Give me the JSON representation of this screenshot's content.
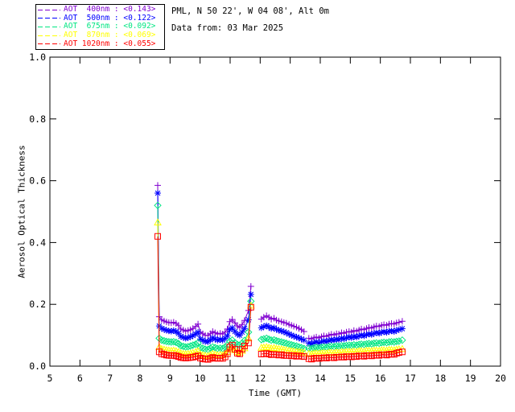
{
  "header": {
    "line1": "PML, N 50 22', W 04 08', Alt 0m",
    "line2": "Data from: 03 Mar 2025"
  },
  "legend": {
    "items": [
      {
        "label": "AOT  400nm : <0.143>",
        "color": "#8000d0"
      },
      {
        "label": "AOT  500nm : <0.122>",
        "color": "#0000ff"
      },
      {
        "label": "AOT  675nm : <0.092>",
        "color": "#00e682"
      },
      {
        "label": "AOT  870nm : <0.069>",
        "color": "#ffff00"
      },
      {
        "label": "AOT 1020nm : <0.055>",
        "color": "#ff0000"
      }
    ]
  },
  "chart_data": {
    "type": "line",
    "title": "",
    "xlabel": "Time (GMT)",
    "ylabel": "Aerosol Optical Thickness",
    "xlim": [
      5,
      20
    ],
    "ylim": [
      0.0,
      1.0
    ],
    "grid": false,
    "legend_position": "top-left-outside",
    "xticks": [
      5,
      6,
      7,
      8,
      9,
      10,
      11,
      12,
      13,
      14,
      15,
      16,
      17,
      18,
      19,
      20
    ],
    "xtick_labels": [
      "5",
      "6",
      "7",
      "8",
      "9",
      "10",
      "11",
      "12",
      "13",
      "14",
      "15",
      "16",
      "17",
      "18",
      "19",
      "20"
    ],
    "yticks": [
      0.0,
      0.2,
      0.4,
      0.6,
      0.8,
      1.0
    ],
    "ytick_labels": [
      "0.0",
      "0.2",
      "0.4",
      "0.6",
      "0.8",
      "1.0"
    ],
    "axis_color": "#000000",
    "segment_times": [
      [
        8.59,
        8.64,
        8.72,
        8.8,
        8.88,
        8.96,
        9.04,
        9.12,
        9.2,
        9.28,
        9.36,
        9.44,
        9.52,
        9.6,
        9.68,
        9.76,
        9.85,
        9.93,
        10.01,
        10.09,
        10.17,
        10.26,
        10.34,
        10.42,
        10.5,
        10.58,
        10.67,
        10.75,
        10.83,
        10.91,
        10.99,
        11.07,
        11.16,
        11.24,
        11.32,
        11.4,
        11.48,
        11.61,
        11.69
      ],
      [
        12.04,
        12.12,
        12.21,
        12.29,
        12.37,
        12.46,
        12.54,
        12.62,
        12.71,
        12.79,
        12.87,
        12.96,
        13.04,
        13.12,
        13.21,
        13.29,
        13.37,
        13.46
      ],
      [
        13.62,
        13.71,
        13.79,
        13.87,
        13.96,
        14.04,
        14.12,
        14.21,
        14.29,
        14.37,
        14.46,
        14.54,
        14.62,
        14.71,
        14.79,
        14.87,
        14.96,
        15.04,
        15.12,
        15.21,
        15.29,
        15.37,
        15.46,
        15.54,
        15.62,
        15.71,
        15.79,
        15.87,
        15.96,
        16.04,
        16.12,
        16.21,
        16.29,
        16.37,
        16.46,
        16.54,
        16.62,
        16.73
      ]
    ],
    "series": [
      {
        "name": "AOT 400nm",
        "mean": "<0.143>",
        "color": "#8000d0",
        "marker": "plus",
        "segment_values": [
          [
            0.585,
            0.16,
            0.15,
            0.146,
            0.143,
            0.141,
            0.14,
            0.142,
            0.138,
            0.132,
            0.12,
            0.117,
            0.113,
            0.115,
            0.118,
            0.122,
            0.128,
            0.136,
            0.11,
            0.105,
            0.1,
            0.099,
            0.105,
            0.112,
            0.108,
            0.104,
            0.106,
            0.104,
            0.11,
            0.12,
            0.144,
            0.151,
            0.14,
            0.13,
            0.125,
            0.135,
            0.148,
            0.18,
            0.258
          ],
          [
            0.152,
            0.158,
            0.163,
            0.158,
            0.152,
            0.155,
            0.149,
            0.146,
            0.144,
            0.141,
            0.139,
            0.135,
            0.132,
            0.129,
            0.126,
            0.122,
            0.118,
            0.112
          ],
          [
            0.09,
            0.088,
            0.092,
            0.094,
            0.091,
            0.095,
            0.098,
            0.096,
            0.1,
            0.103,
            0.101,
            0.105,
            0.104,
            0.108,
            0.106,
            0.11,
            0.112,
            0.11,
            0.115,
            0.113,
            0.117,
            0.12,
            0.118,
            0.122,
            0.125,
            0.123,
            0.127,
            0.13,
            0.128,
            0.132,
            0.134,
            0.132,
            0.136,
            0.138,
            0.136,
            0.14,
            0.142,
            0.145
          ]
        ]
      },
      {
        "name": "AOT 500nm",
        "mean": "<0.122>",
        "color": "#0000ff",
        "marker": "asterisk",
        "segment_values": [
          [
            0.56,
            0.13,
            0.122,
            0.119,
            0.116,
            0.114,
            0.113,
            0.115,
            0.112,
            0.106,
            0.096,
            0.093,
            0.09,
            0.092,
            0.095,
            0.099,
            0.104,
            0.11,
            0.088,
            0.084,
            0.08,
            0.079,
            0.085,
            0.092,
            0.088,
            0.084,
            0.086,
            0.084,
            0.09,
            0.098,
            0.118,
            0.124,
            0.112,
            0.104,
            0.1,
            0.11,
            0.122,
            0.15,
            0.232
          ],
          [
            0.124,
            0.128,
            0.131,
            0.127,
            0.122,
            0.124,
            0.119,
            0.116,
            0.114,
            0.111,
            0.108,
            0.104,
            0.1,
            0.097,
            0.094,
            0.091,
            0.088,
            0.084
          ],
          [
            0.074,
            0.072,
            0.076,
            0.078,
            0.075,
            0.079,
            0.081,
            0.079,
            0.083,
            0.085,
            0.084,
            0.087,
            0.086,
            0.09,
            0.088,
            0.092,
            0.094,
            0.092,
            0.096,
            0.094,
            0.098,
            0.1,
            0.098,
            0.102,
            0.104,
            0.102,
            0.106,
            0.108,
            0.106,
            0.11,
            0.111,
            0.109,
            0.113,
            0.114,
            0.112,
            0.116,
            0.118,
            0.121
          ]
        ]
      },
      {
        "name": "AOT 675nm",
        "mean": "<0.092>",
        "color": "#00e682",
        "marker": "diamond",
        "segment_values": [
          [
            0.52,
            0.09,
            0.084,
            0.082,
            0.08,
            0.079,
            0.078,
            0.079,
            0.077,
            0.073,
            0.066,
            0.064,
            0.062,
            0.063,
            0.065,
            0.068,
            0.071,
            0.075,
            0.06,
            0.058,
            0.055,
            0.054,
            0.058,
            0.062,
            0.06,
            0.057,
            0.058,
            0.057,
            0.062,
            0.068,
            0.08,
            0.084,
            0.076,
            0.07,
            0.068,
            0.075,
            0.083,
            0.11,
            0.21
          ],
          [
            0.086,
            0.088,
            0.09,
            0.087,
            0.084,
            0.085,
            0.082,
            0.08,
            0.078,
            0.076,
            0.074,
            0.071,
            0.069,
            0.067,
            0.065,
            0.062,
            0.06,
            0.057
          ],
          [
            0.058,
            0.057,
            0.059,
            0.06,
            0.059,
            0.061,
            0.062,
            0.061,
            0.063,
            0.064,
            0.063,
            0.065,
            0.064,
            0.066,
            0.065,
            0.067,
            0.068,
            0.067,
            0.069,
            0.068,
            0.07,
            0.071,
            0.07,
            0.072,
            0.073,
            0.072,
            0.074,
            0.075,
            0.074,
            0.076,
            0.077,
            0.076,
            0.078,
            0.079,
            0.078,
            0.08,
            0.081,
            0.084
          ]
        ]
      },
      {
        "name": "AOT 870nm",
        "mean": "<0.069>",
        "color": "#ffff00",
        "marker": "triangle",
        "segment_values": [
          [
            0.465,
            0.062,
            0.056,
            0.054,
            0.052,
            0.051,
            0.05,
            0.051,
            0.049,
            0.046,
            0.042,
            0.04,
            0.039,
            0.04,
            0.041,
            0.043,
            0.046,
            0.049,
            0.038,
            0.036,
            0.034,
            0.033,
            0.036,
            0.04,
            0.038,
            0.036,
            0.037,
            0.036,
            0.04,
            0.046,
            0.056,
            0.06,
            0.052,
            0.046,
            0.044,
            0.05,
            0.058,
            0.09,
            0.196
          ],
          [
            0.06,
            0.061,
            0.062,
            0.06,
            0.058,
            0.059,
            0.057,
            0.056,
            0.055,
            0.053,
            0.052,
            0.05,
            0.049,
            0.048,
            0.047,
            0.046,
            0.045,
            0.044
          ],
          [
            0.04,
            0.039,
            0.041,
            0.042,
            0.041,
            0.042,
            0.043,
            0.042,
            0.044,
            0.044,
            0.043,
            0.045,
            0.044,
            0.046,
            0.045,
            0.047,
            0.047,
            0.046,
            0.048,
            0.047,
            0.049,
            0.049,
            0.048,
            0.05,
            0.05,
            0.049,
            0.051,
            0.051,
            0.05,
            0.052,
            0.052,
            0.051,
            0.053,
            0.053,
            0.052,
            0.054,
            0.055,
            0.056
          ]
        ]
      },
      {
        "name": "AOT 1020nm",
        "mean": "<0.055>",
        "color": "#ff0000",
        "marker": "square",
        "segment_values": [
          [
            0.42,
            0.046,
            0.04,
            0.038,
            0.036,
            0.035,
            0.034,
            0.035,
            0.033,
            0.031,
            0.028,
            0.027,
            0.026,
            0.027,
            0.028,
            0.029,
            0.031,
            0.033,
            0.026,
            0.024,
            0.023,
            0.022,
            0.025,
            0.028,
            0.026,
            0.025,
            0.026,
            0.025,
            0.03,
            0.04,
            0.062,
            0.068,
            0.055,
            0.042,
            0.04,
            0.055,
            0.065,
            0.075,
            0.191
          ],
          [
            0.039,
            0.04,
            0.041,
            0.039,
            0.037,
            0.038,
            0.037,
            0.036,
            0.037,
            0.035,
            0.034,
            0.035,
            0.033,
            0.034,
            0.032,
            0.033,
            0.032,
            0.031
          ],
          [
            0.024,
            0.023,
            0.025,
            0.026,
            0.025,
            0.026,
            0.027,
            0.026,
            0.028,
            0.028,
            0.027,
            0.029,
            0.029,
            0.03,
            0.029,
            0.031,
            0.031,
            0.03,
            0.032,
            0.031,
            0.033,
            0.033,
            0.032,
            0.034,
            0.034,
            0.033,
            0.035,
            0.036,
            0.035,
            0.037,
            0.037,
            0.036,
            0.038,
            0.039,
            0.038,
            0.042,
            0.044,
            0.046
          ]
        ]
      }
    ]
  }
}
